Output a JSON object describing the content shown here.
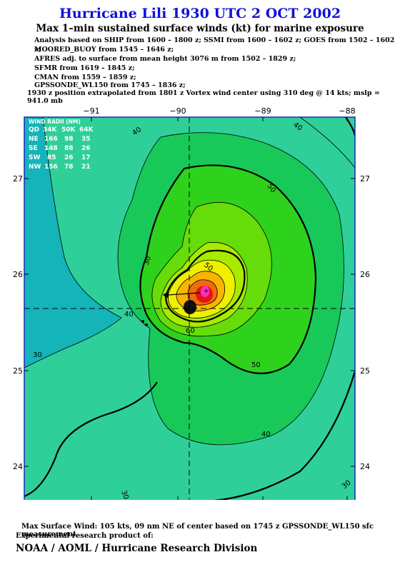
{
  "title": "Hurricane Lili 1930 UTC 2 OCT 2002",
  "subtitle": "Max 1–min sustained surface winds (kt) for marine exposure",
  "analysis_lines": [
    "Analysis based on  SHIP from 1600 – 1800 z;  SSMI from 1600 – 1602 z;  GOES from 1502 – 1602 z;",
    "MOORED_BUOY from 1545 – 1646 z;",
    "AFRES adj. to surface from mean height 3076 m from 1502 – 1829 z;",
    "SFMR from 1619 – 1845 z;",
    "CMAN from 1559 – 1859 z;",
    "GPSSONDE_WL150 from 1745 – 1836 z;"
  ],
  "position_note": "1930 z position extrapolated from 1801 z Vortex wind center using 310 deg @ 14 kts; mslp = 941.0 mb",
  "wind_radii": {
    "title": "WIND RADII (NM)",
    "header": [
      "QD",
      "34K",
      "50K",
      "64K"
    ],
    "rows": [
      [
        "NE",
        "166",
        "98",
        "35"
      ],
      [
        "SE",
        "148",
        "88",
        "26"
      ],
      [
        "SW",
        "85",
        "26",
        "17"
      ],
      [
        "NW",
        "156",
        "78",
        "21"
      ]
    ]
  },
  "map": {
    "lon_labels": [
      "−91",
      "−90",
      "−89",
      "−88"
    ],
    "lat_labels": [
      "27",
      "26",
      "25",
      "24"
    ],
    "contour_labels": [
      "40",
      "40",
      "40",
      "40",
      "50",
      "50",
      "50",
      "30",
      "30",
      "30",
      "30",
      "60"
    ],
    "colors": {
      "c30": "#2fcf9a",
      "c40": "#18c95a",
      "c50": "#2ed21c",
      "c60": "#66dc0a",
      "c70": "#a8ea00",
      "c80": "#eef000",
      "c90": "#f8b400",
      "c100": "#f26a0a",
      "c110": "#e01515",
      "c120": "#ff2fc0",
      "bg": "#14b4b8",
      "frame": "#1a2ab8"
    }
  },
  "footer_line": "Max Surface Wind: 105 kts, 09 nm NE of center based on 1745 z GPSSONDE_WL150 sfc measurement",
  "footer_line2": "Experimental research product of:",
  "organization": "NOAA / AOML / Hurricane Research Division"
}
